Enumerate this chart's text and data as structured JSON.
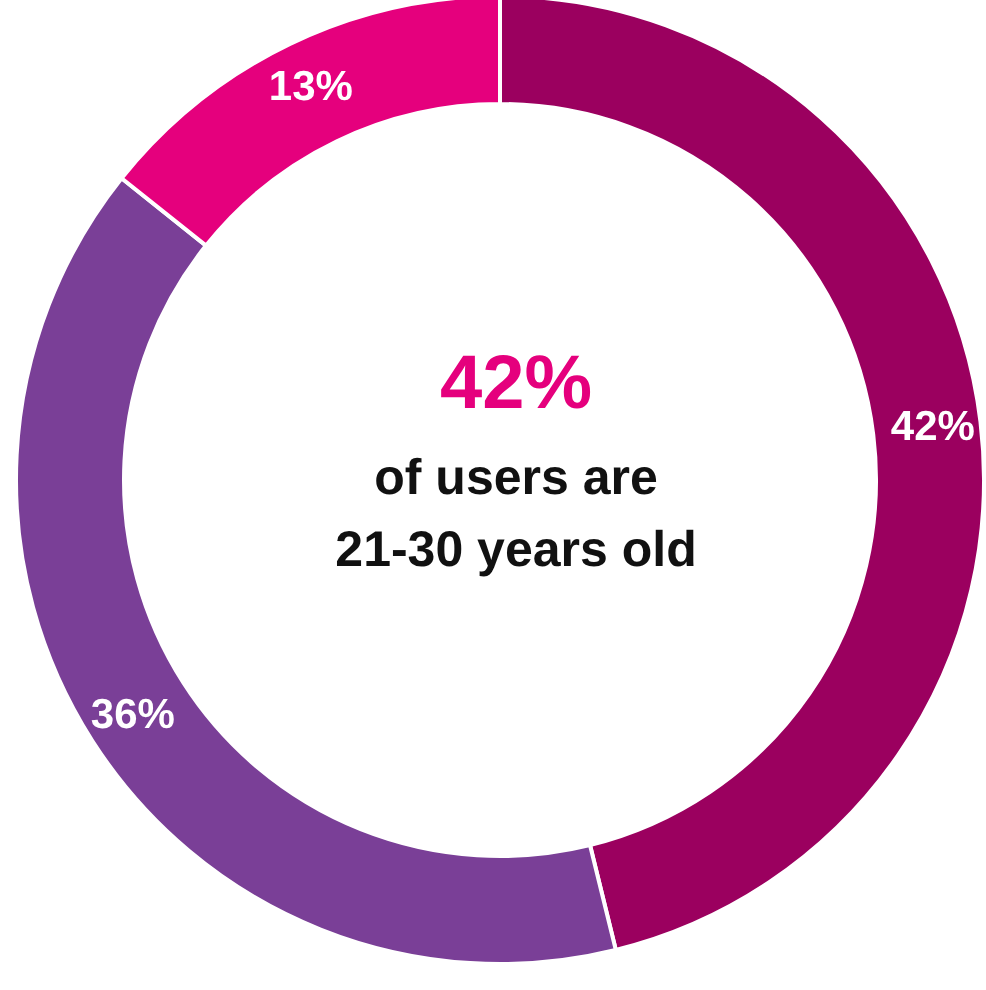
{
  "chart_data": {
    "type": "donut",
    "title": "42%",
    "subtitle": "of users are\n21-30 years old",
    "categories": [
      null,
      null,
      null
    ],
    "values": [
      42,
      36,
      13
    ],
    "colors": [
      "#9b005f",
      "#7a3f97",
      "#e5007d"
    ],
    "value_labels": [
      "42%",
      "36%",
      "13%"
    ]
  }
}
